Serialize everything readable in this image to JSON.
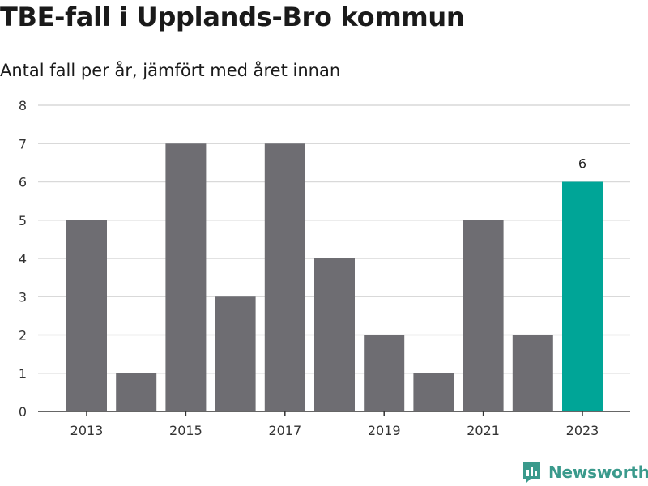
{
  "header": {
    "title": "TBE-fall i Upplands-Bro kommun",
    "subtitle": "Antal fall per år, jämfört med året innan"
  },
  "brand": {
    "name": "Newsworthy",
    "color": "#3a9a8c"
  },
  "colors": {
    "bar": "#6e6d72",
    "highlight": "#00a597",
    "grid": "#d9d9d9",
    "axis": "#333333"
  },
  "chart_data": {
    "type": "bar",
    "categories": [
      "2013",
      "2014",
      "2015",
      "2016",
      "2017",
      "2018",
      "2019",
      "2020",
      "2021",
      "2022",
      "2023"
    ],
    "values": [
      5,
      1,
      7,
      3,
      7,
      4,
      2,
      1,
      5,
      2,
      6
    ],
    "x_tick_labels": [
      "2013",
      "2015",
      "2017",
      "2019",
      "2021",
      "2023"
    ],
    "y_ticks": [
      0,
      1,
      2,
      3,
      4,
      5,
      6,
      7,
      8
    ],
    "ylim": [
      0,
      8
    ],
    "highlight_category": "2023",
    "data_labels": [
      {
        "category": "2023",
        "value": "6"
      }
    ],
    "grid": true,
    "title": "TBE-fall i Upplands-Bro kommun",
    "subtitle": "Antal fall per år, jämfört med året innan",
    "xlabel": "",
    "ylabel": ""
  }
}
